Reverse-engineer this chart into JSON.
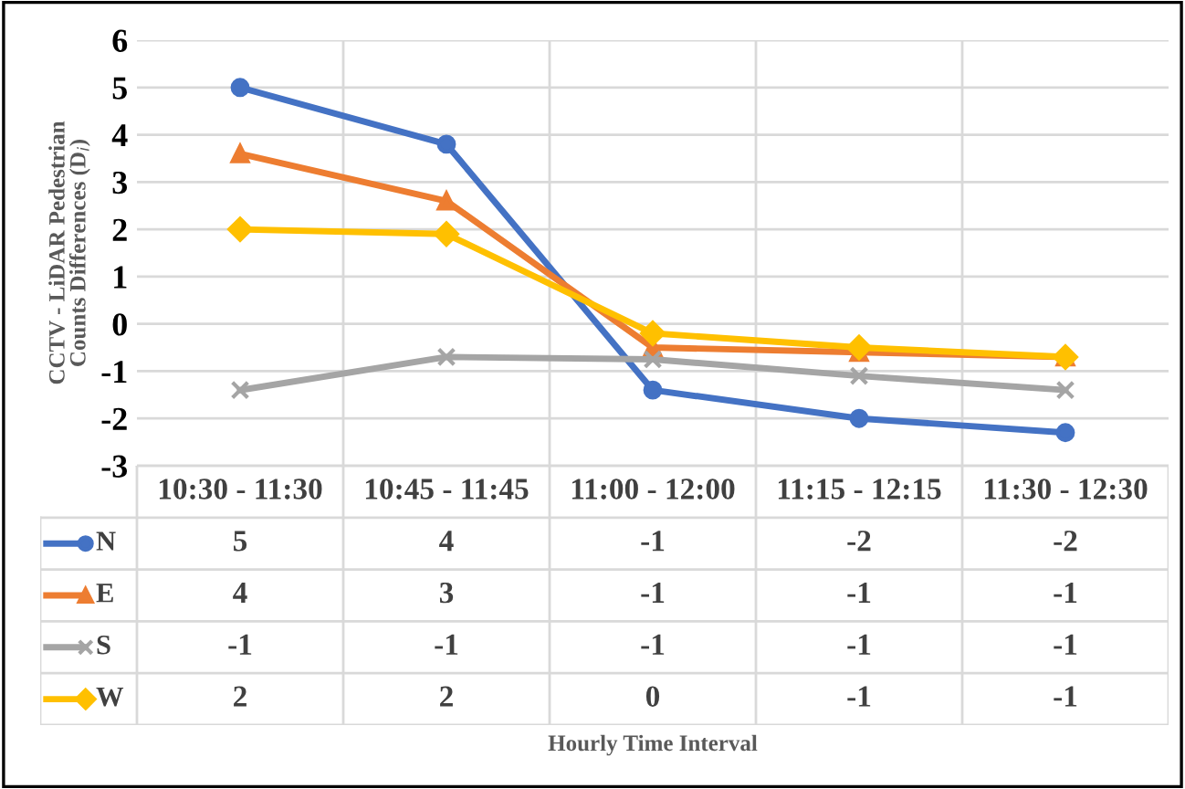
{
  "chart_data": {
    "type": "line",
    "ylabel": "CCTV - LiDAR Pedestrian\nCounts Differences (D$_{i}$)",
    "annotations": [
      "Hourly Time Interval"
    ],
    "legend": "bottom left",
    "categories": [
      "10:30 - 11:30",
      "10:45 - 11:45",
      "11:00 - 12:00",
      "11:15 - 12:15",
      "11:30 - 12:30"
    ],
    "series": [
      {
        "name": "N",
        "color": "#4472c4",
        "marker": "circle",
        "values": [
          5.0,
          3.8,
          -1.4,
          -2.0,
          -2.3
        ],
        "value_labels": [
          "5",
          "4",
          "-1",
          "-2",
          "-2"
        ]
      },
      {
        "name": "E",
        "color": "#ed7d31",
        "marker": "triangle",
        "values": [
          3.6,
          2.6,
          -0.5,
          -0.6,
          -0.7
        ],
        "value_labels": [
          "4",
          "3",
          "-1",
          "-1",
          "-1"
        ]
      },
      {
        "name": "S",
        "color": "#a5a5a5",
        "marker": "cross",
        "values": [
          -1.4,
          -0.7,
          -0.75,
          -1.1,
          -1.4
        ],
        "value_labels": [
          "-1",
          "-1",
          "-1",
          "-1",
          "-1"
        ]
      },
      {
        "name": "W",
        "color": "#ffc000",
        "marker": "diamond",
        "values": [
          2.0,
          1.9,
          -0.2,
          -0.5,
          -0.7
        ],
        "value_labels": [
          "2",
          "2",
          "0",
          "-1",
          "-1"
        ]
      }
    ],
    "ylim": [
      -3,
      6
    ],
    "yticks": [
      -3,
      -2,
      -1,
      0,
      1,
      2,
      3,
      4,
      5,
      6
    ],
    "grid": true
  }
}
